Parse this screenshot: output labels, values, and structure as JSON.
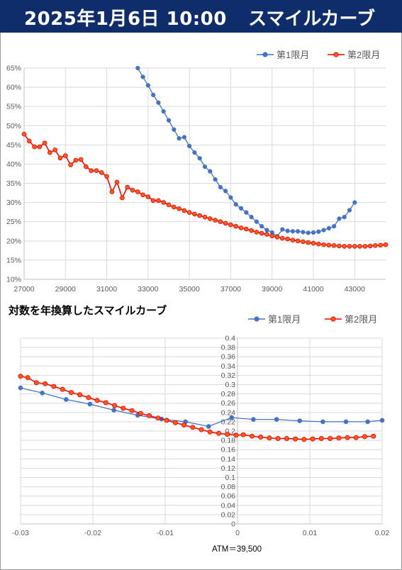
{
  "header": {
    "date": "2025年1月6日 10:00",
    "title": "スマイルカーブ"
  },
  "colors": {
    "header_bg": "#0f2d6b",
    "series1": "#4472c4",
    "series2": "#ff0000",
    "series2_fill": "#ff5a1f",
    "grid": "#d9d9d9"
  },
  "chart_data": [
    {
      "type": "line",
      "title": "",
      "xlabel": "",
      "ylabel": "",
      "xlim": [
        27000,
        44500
      ],
      "ylim": [
        0.1,
        0.65
      ],
      "grid": true,
      "legend": "top-right",
      "x_ticks": [
        "27000",
        "29000",
        "31000",
        "33000",
        "35000",
        "37000",
        "39000",
        "41000",
        "43000"
      ],
      "x_tick_values": [
        27000,
        29000,
        31000,
        33000,
        35000,
        37000,
        39000,
        41000,
        43000
      ],
      "y_ticks": [
        "10%",
        "15%",
        "20%",
        "25%",
        "30%",
        "35%",
        "40%",
        "45%",
        "50%",
        "55%",
        "60%",
        "65%"
      ],
      "y_tick_values": [
        0.1,
        0.15,
        0.2,
        0.25,
        0.3,
        0.35,
        0.4,
        0.45,
        0.5,
        0.55,
        0.6,
        0.65
      ],
      "series": [
        {
          "name": "第1限月",
          "color": "#4472c4",
          "x": [
            32500,
            32750,
            33000,
            33250,
            33500,
            33750,
            34000,
            34250,
            34500,
            34750,
            35000,
            35250,
            35500,
            35750,
            36000,
            36250,
            36500,
            36750,
            37000,
            37250,
            37500,
            37750,
            38000,
            38250,
            38500,
            38750,
            39000,
            39250,
            39500,
            39750,
            40000,
            40250,
            40500,
            40750,
            41000,
            41250,
            41500,
            41750,
            42000,
            42250,
            42500,
            42750,
            43000
          ],
          "y": [
            0.65,
            0.627,
            0.605,
            0.58,
            0.56,
            0.537,
            0.514,
            0.49,
            0.467,
            0.47,
            0.447,
            0.43,
            0.415,
            0.393,
            0.381,
            0.36,
            0.34,
            0.33,
            0.313,
            0.295,
            0.285,
            0.274,
            0.262,
            0.25,
            0.238,
            0.228,
            0.222,
            0.212,
            0.23,
            0.226,
            0.225,
            0.225,
            0.223,
            0.221,
            0.222,
            0.224,
            0.228,
            0.233,
            0.238,
            0.258,
            0.262,
            0.28,
            0.3
          ]
        },
        {
          "name": "第2限月",
          "color": "#ff0000",
          "x": [
            27000,
            27250,
            27500,
            27750,
            28000,
            28250,
            28500,
            28750,
            29000,
            29250,
            29500,
            29750,
            30000,
            30250,
            30500,
            30750,
            31000,
            31250,
            31500,
            31750,
            32000,
            32250,
            32500,
            32750,
            33000,
            33250,
            33500,
            33750,
            34000,
            34250,
            34500,
            34750,
            35000,
            35250,
            35500,
            35750,
            36000,
            36250,
            36500,
            36750,
            37000,
            37250,
            37500,
            37750,
            38000,
            38250,
            38500,
            38750,
            39000,
            39250,
            39500,
            39750,
            40000,
            40250,
            40500,
            40750,
            41000,
            41250,
            41500,
            41750,
            42000,
            42250,
            42500,
            42750,
            43000,
            43250,
            43500,
            43750,
            44000,
            44250,
            44500
          ],
          "y": [
            0.478,
            0.46,
            0.445,
            0.445,
            0.455,
            0.43,
            0.437,
            0.416,
            0.422,
            0.398,
            0.41,
            0.412,
            0.393,
            0.383,
            0.383,
            0.378,
            0.368,
            0.328,
            0.353,
            0.312,
            0.34,
            0.332,
            0.328,
            0.32,
            0.315,
            0.305,
            0.305,
            0.3,
            0.294,
            0.288,
            0.284,
            0.279,
            0.274,
            0.27,
            0.266,
            0.262,
            0.258,
            0.254,
            0.25,
            0.246,
            0.242,
            0.238,
            0.234,
            0.231,
            0.227,
            0.223,
            0.22,
            0.217,
            0.213,
            0.21,
            0.207,
            0.205,
            0.202,
            0.2,
            0.198,
            0.196,
            0.194,
            0.192,
            0.19,
            0.189,
            0.188,
            0.187,
            0.186,
            0.186,
            0.186,
            0.186,
            0.186,
            0.187,
            0.188,
            0.189,
            0.19
          ]
        }
      ]
    },
    {
      "type": "line",
      "title": "対数を年換算したスマイルカーブ",
      "xlabel": "ATM＝39,500",
      "ylabel": "",
      "xlim": [
        -0.03,
        0.02
      ],
      "ylim": [
        0,
        0.4
      ],
      "grid": true,
      "legend": "top-right",
      "x_ticks": [
        "-0.03",
        "-0.02",
        "-0.01",
        "0",
        "0.01",
        "0.02"
      ],
      "x_tick_values": [
        -0.03,
        -0.02,
        -0.01,
        0,
        0.01,
        0.02
      ],
      "y_ticks": [
        "0",
        "0.02",
        "0.04",
        "0.06",
        "0.08",
        "0.1",
        "0.12",
        "0.14",
        "0.16",
        "0.18",
        "0.2",
        "0.22",
        "0.24",
        "0.26",
        "0.28",
        "0.3",
        "0.32",
        "0.34",
        "0.36",
        "0.38",
        "0.4"
      ],
      "y_tick_values": [
        0,
        0.02,
        0.04,
        0.06,
        0.08,
        0.1,
        0.12,
        0.14,
        0.16,
        0.18,
        0.2,
        0.22,
        0.24,
        0.26,
        0.28,
        0.3,
        0.32,
        0.34,
        0.36,
        0.38,
        0.4
      ],
      "series": [
        {
          "name": "第1限月",
          "color": "#4472c4",
          "x": [
            -0.03,
            -0.027,
            -0.0237,
            -0.0204,
            -0.0171,
            -0.0138,
            -0.0105,
            -0.0072,
            -0.004,
            -0.0008,
            0.0022,
            0.0054,
            0.0086,
            0.0118,
            0.015,
            0.018,
            0.02
          ],
          "y": [
            0.293,
            0.282,
            0.268,
            0.258,
            0.245,
            0.234,
            0.226,
            0.22,
            0.21,
            0.229,
            0.225,
            0.225,
            0.222,
            0.22,
            0.22,
            0.22,
            0.223
          ]
        },
        {
          "name": "第2限月",
          "color": "#ff0000",
          "x": [
            -0.03,
            -0.029,
            -0.0278,
            -0.0266,
            -0.0254,
            -0.0242,
            -0.023,
            -0.0218,
            -0.0206,
            -0.0194,
            -0.0182,
            -0.017,
            -0.0158,
            -0.0146,
            -0.0134,
            -0.0122,
            -0.011,
            -0.0098,
            -0.0086,
            -0.0074,
            -0.0062,
            -0.005,
            -0.0038,
            -0.0026,
            -0.0014,
            -0.0002,
            0.0008,
            0.002,
            0.0032,
            0.0044,
            0.0056,
            0.0068,
            0.008,
            0.0092,
            0.0104,
            0.0116,
            0.0128,
            0.014,
            0.0152,
            0.0164,
            0.0176,
            0.0188
          ],
          "y": [
            0.318,
            0.315,
            0.304,
            0.302,
            0.296,
            0.29,
            0.283,
            0.278,
            0.272,
            0.266,
            0.261,
            0.255,
            0.249,
            0.244,
            0.238,
            0.233,
            0.228,
            0.223,
            0.218,
            0.213,
            0.208,
            0.203,
            0.198,
            0.195,
            0.193,
            0.191,
            0.192,
            0.189,
            0.187,
            0.185,
            0.184,
            0.184,
            0.183,
            0.182,
            0.183,
            0.184,
            0.184,
            0.185,
            0.186,
            0.186,
            0.188,
            0.189
          ]
        }
      ]
    }
  ]
}
